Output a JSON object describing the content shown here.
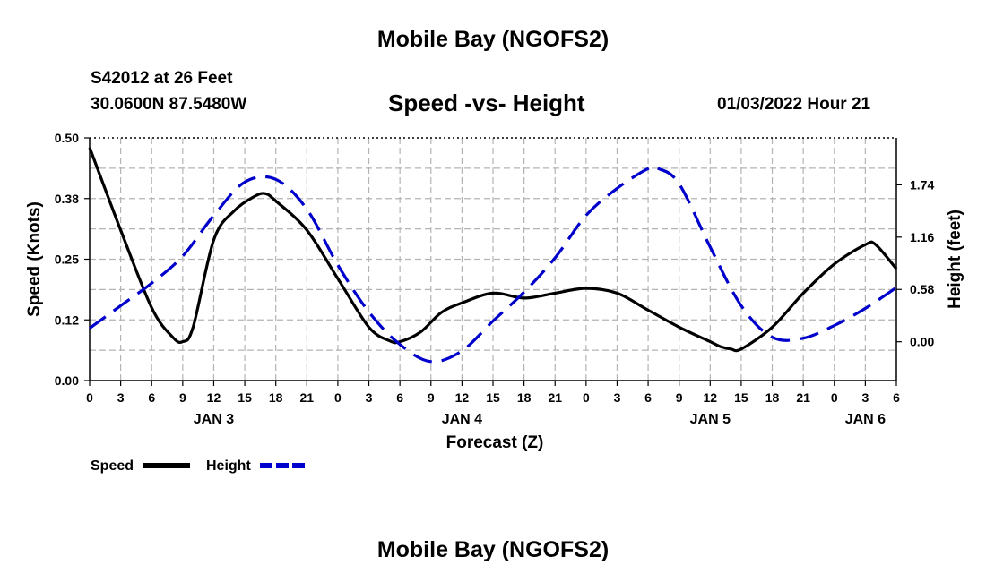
{
  "header": {
    "title": "Mobile Bay (NGOFS2)",
    "station": "S42012 at 26 Feet",
    "coords": "30.0600N  87.5480W",
    "forecast_time": "01/03/2022 Hour 21"
  },
  "footer": {
    "title": "Mobile Bay (NGOFS2)"
  },
  "chart_data": {
    "type": "line",
    "title": "Speed -vs- Height",
    "xlabel": "Forecast (Z)",
    "ylabel_left": "Speed (Knots)",
    "ylabel_right": "Height (feet)",
    "x_range_hours": [
      0,
      78
    ],
    "x_ticks": [
      {
        "h": 0,
        "label": "0"
      },
      {
        "h": 3,
        "label": "3"
      },
      {
        "h": 6,
        "label": "6"
      },
      {
        "h": 9,
        "label": "9"
      },
      {
        "h": 12,
        "label": "12"
      },
      {
        "h": 15,
        "label": "15"
      },
      {
        "h": 18,
        "label": "18"
      },
      {
        "h": 21,
        "label": "21"
      },
      {
        "h": 24,
        "label": "0"
      },
      {
        "h": 27,
        "label": "3"
      },
      {
        "h": 30,
        "label": "6"
      },
      {
        "h": 33,
        "label": "9"
      },
      {
        "h": 36,
        "label": "12"
      },
      {
        "h": 39,
        "label": "15"
      },
      {
        "h": 42,
        "label": "18"
      },
      {
        "h": 45,
        "label": "21"
      },
      {
        "h": 48,
        "label": "0"
      },
      {
        "h": 51,
        "label": "3"
      },
      {
        "h": 54,
        "label": "6"
      },
      {
        "h": 57,
        "label": "9"
      },
      {
        "h": 60,
        "label": "12"
      },
      {
        "h": 63,
        "label": "15"
      },
      {
        "h": 66,
        "label": "18"
      },
      {
        "h": 69,
        "label": "21"
      },
      {
        "h": 72,
        "label": "0"
      },
      {
        "h": 75,
        "label": "3"
      },
      {
        "h": 78,
        "label": "6"
      }
    ],
    "day_labels": [
      {
        "h": 12,
        "label": "JAN 3"
      },
      {
        "h": 36,
        "label": "JAN 4"
      },
      {
        "h": 60,
        "label": "JAN 5"
      },
      {
        "h": 75,
        "label": "JAN 6"
      }
    ],
    "y_left": {
      "min": 0,
      "max": 0.5,
      "ticks": [
        {
          "v": 0,
          "label": "0.00"
        },
        {
          "v": 0.125,
          "label": "0.12"
        },
        {
          "v": 0.25,
          "label": "0.25"
        },
        {
          "v": 0.375,
          "label": "0.38"
        },
        {
          "v": 0.5,
          "label": "0.50"
        }
      ]
    },
    "y_right": {
      "min": -0.43,
      "max": 2.26,
      "ticks": [
        {
          "v": 0,
          "label": "0.00"
        },
        {
          "v": 0.58,
          "label": "0.58"
        },
        {
          "v": 1.16,
          "label": "1.16"
        },
        {
          "v": 1.74,
          "label": "1.74"
        }
      ]
    },
    "series": [
      {
        "name": "Speed",
        "axis": "left",
        "color": "#000000",
        "dash": "solid",
        "x": [
          0,
          3,
          6,
          8,
          9,
          10,
          12,
          14,
          16,
          17,
          18,
          21,
          24,
          27,
          29,
          30,
          32,
          34,
          36,
          39,
          42,
          45,
          48,
          51,
          54,
          57,
          60,
          61,
          62,
          63,
          66,
          69,
          72,
          75,
          76,
          78
        ],
        "y": [
          0.48,
          0.31,
          0.15,
          0.09,
          0.08,
          0.11,
          0.29,
          0.35,
          0.38,
          0.385,
          0.37,
          0.31,
          0.21,
          0.11,
          0.082,
          0.08,
          0.1,
          0.14,
          0.16,
          0.18,
          0.17,
          0.18,
          0.19,
          0.18,
          0.145,
          0.11,
          0.08,
          0.07,
          0.065,
          0.065,
          0.11,
          0.18,
          0.24,
          0.28,
          0.28,
          0.23
        ]
      },
      {
        "name": "Height",
        "axis": "right",
        "color": "#0000cc",
        "dash": "dashed",
        "x": [
          0,
          3,
          6,
          9,
          12,
          15,
          18,
          21,
          24,
          27,
          30,
          33,
          36,
          39,
          42,
          45,
          48,
          51,
          54,
          55,
          57,
          60,
          63,
          66,
          69,
          72,
          75,
          78
        ],
        "y": [
          0.15,
          0.4,
          0.65,
          0.95,
          1.4,
          1.77,
          1.8,
          1.47,
          0.85,
          0.33,
          -0.03,
          -0.22,
          -0.1,
          0.23,
          0.55,
          0.93,
          1.4,
          1.7,
          1.92,
          1.92,
          1.75,
          1.05,
          0.4,
          0.05,
          0.04,
          0.18,
          0.37,
          0.6
        ]
      }
    ],
    "legend": [
      {
        "name": "Speed",
        "color": "#000000",
        "dash": "solid"
      },
      {
        "name": "Height",
        "color": "#0000cc",
        "dash": "dashed"
      }
    ],
    "grid": true,
    "legend_placement": "bottom-left"
  }
}
